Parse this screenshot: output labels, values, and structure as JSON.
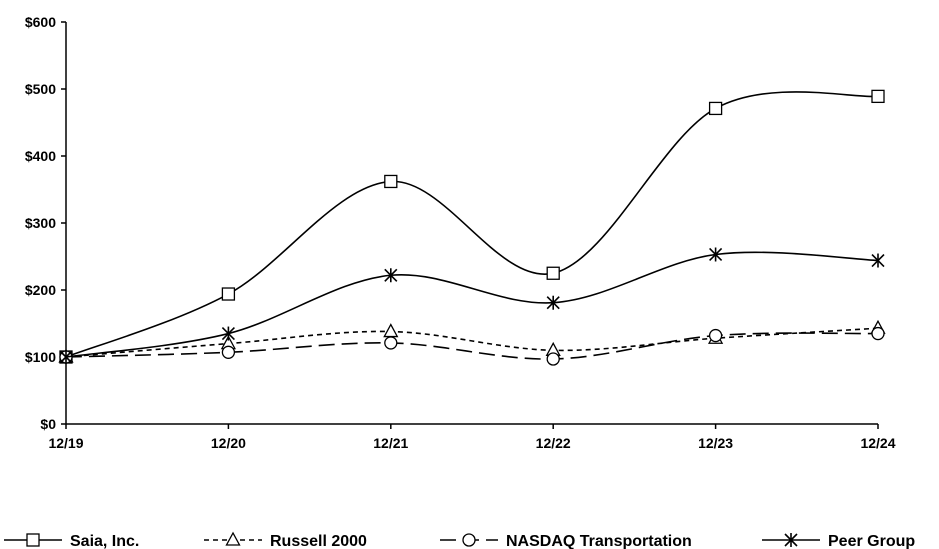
{
  "chart_data": {
    "type": "line",
    "title": "",
    "xlabel": "",
    "ylabel": "",
    "categories": [
      "12/19",
      "12/20",
      "12/21",
      "12/22",
      "12/23",
      "12/24"
    ],
    "ylim": [
      0,
      600
    ],
    "yticks": [
      "$0",
      "$100",
      "$200",
      "$300",
      "$400",
      "$500",
      "$600"
    ],
    "ytick_values": [
      0,
      100,
      200,
      300,
      400,
      500,
      600
    ],
    "grid": false,
    "legend_position": "bottom",
    "series": [
      {
        "name": "Saia, Inc.",
        "marker": "square",
        "dash": "solid",
        "values": [
          100,
          194,
          362,
          225,
          471,
          489
        ]
      },
      {
        "name": "Russell 2000",
        "marker": "triangle",
        "dash": "short-dash",
        "values": [
          100,
          120,
          138,
          110,
          128,
          143
        ]
      },
      {
        "name": "NASDAQ Transportation",
        "marker": "circle",
        "dash": "long-dash",
        "values": [
          100,
          107,
          121,
          97,
          132,
          135
        ]
      },
      {
        "name": "Peer Group",
        "marker": "asterisk",
        "dash": "solid",
        "values": [
          100,
          135,
          222,
          181,
          253,
          244
        ]
      }
    ]
  }
}
